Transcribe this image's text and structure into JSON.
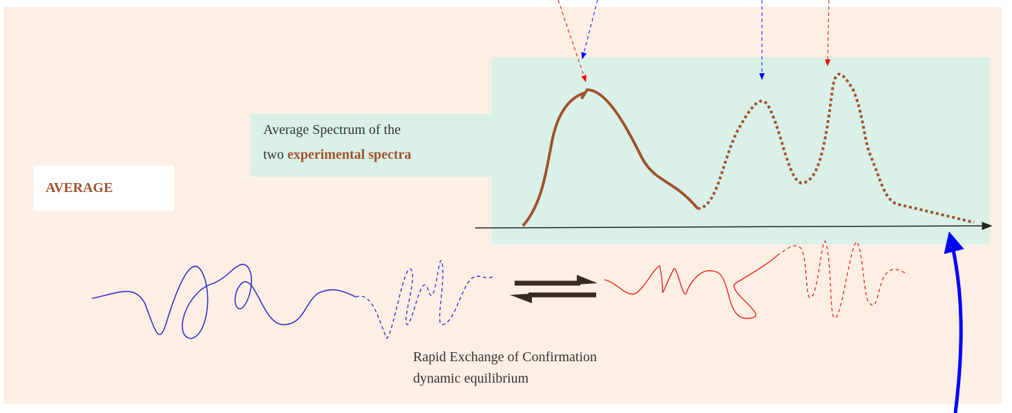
{
  "label_left": "AVERAGE",
  "spectrum_label": {
    "line1": "Average Spectrum of the",
    "line2_prefix": "two",
    "line2_emphasis": "experimental spectra"
  },
  "exchange_caption": {
    "line1": "Rapid Exchange of Confirmation",
    "line2": "dynamic equilibrium"
  }
}
